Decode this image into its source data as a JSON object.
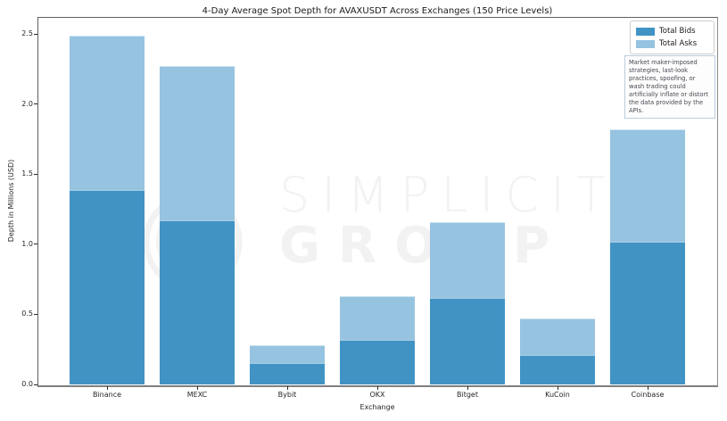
{
  "title": "4-Day Average Spot Depth for AVAXUSDT Across Exchanges (150 Price Levels)",
  "axes": {
    "ylabel": "Depth in Millions (USD)",
    "xlabel": "Exchange",
    "ytick_labels": [
      "0.0",
      "0.5",
      "1.0",
      "1.5",
      "2.0",
      "2.5"
    ]
  },
  "legend": {
    "items": [
      {
        "label": "Total Bids",
        "color": "#4193c4"
      },
      {
        "label": "Total Asks",
        "color": "#96c3e0"
      }
    ]
  },
  "annotation": "Market maker-imposed strategies, last-look practices, spoofing, or wash trading could artificially inflate or distort the data provided by the APIs.",
  "watermark": {
    "line1": "SIMPLICITY",
    "line2": "GROUP"
  },
  "colors": {
    "bids": "#4193c4",
    "asks": "#96c3e0",
    "watermark": "#f2f2f2",
    "spine": "#606060",
    "background": "#ffffff"
  },
  "chart_data": {
    "type": "bar",
    "stacked": true,
    "title": "4-Day Average Spot Depth for AVAXUSDT Across Exchanges (150 Price Levels)",
    "xlabel": "Exchange",
    "ylabel": "Depth in Millions (USD)",
    "categories": [
      "Binance",
      "MEXC",
      "Bybit",
      "OKX",
      "Bitget",
      "KuCoin",
      "Coinbase"
    ],
    "series": [
      {
        "name": "Total Bids",
        "color": "#4193c4",
        "values": [
          1.39,
          1.17,
          0.15,
          0.32,
          0.62,
          0.21,
          1.02
        ]
      },
      {
        "name": "Total Asks",
        "color": "#96c3e0",
        "values": [
          1.1,
          1.1,
          0.13,
          0.31,
          0.54,
          0.26,
          0.8
        ]
      }
    ],
    "stack_totals": [
      2.49,
      2.27,
      0.28,
      0.63,
      1.16,
      0.47,
      1.82
    ],
    "yticks": [
      0.0,
      0.5,
      1.0,
      1.5,
      2.0,
      2.5
    ],
    "ylim": [
      0,
      2.617
    ],
    "grid": false,
    "legend_position": "upper right"
  }
}
